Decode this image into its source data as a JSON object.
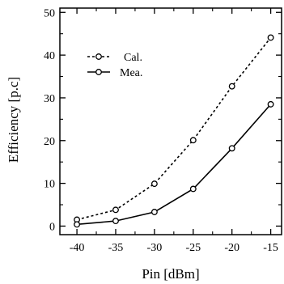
{
  "chart_data": {
    "type": "line",
    "title": "",
    "xlabel": "Pin [dBm]",
    "ylabel": "Efficiency [p.c]",
    "x": [
      -40,
      -35,
      -30,
      -25,
      -20,
      -15
    ],
    "xticks": [
      -40,
      -35,
      -30,
      -25,
      -20,
      -15
    ],
    "xlim": [
      -42.2,
      -13.6
    ],
    "yticks": [
      0,
      10,
      20,
      30,
      40,
      50
    ],
    "ylim": [
      -2,
      51
    ],
    "grid": false,
    "legend_position": "upper-left",
    "series": [
      {
        "name": "Cal.",
        "style": "dotted",
        "marker": "open-circle",
        "color": "#000000",
        "values": [
          1.5,
          3.8,
          9.9,
          20.1,
          32.7,
          44.1
        ]
      },
      {
        "name": "Mea.",
        "style": "solid",
        "marker": "open-circle",
        "color": "#000000",
        "values": [
          0.4,
          1.2,
          3.3,
          8.7,
          18.2,
          28.5
        ]
      }
    ]
  }
}
